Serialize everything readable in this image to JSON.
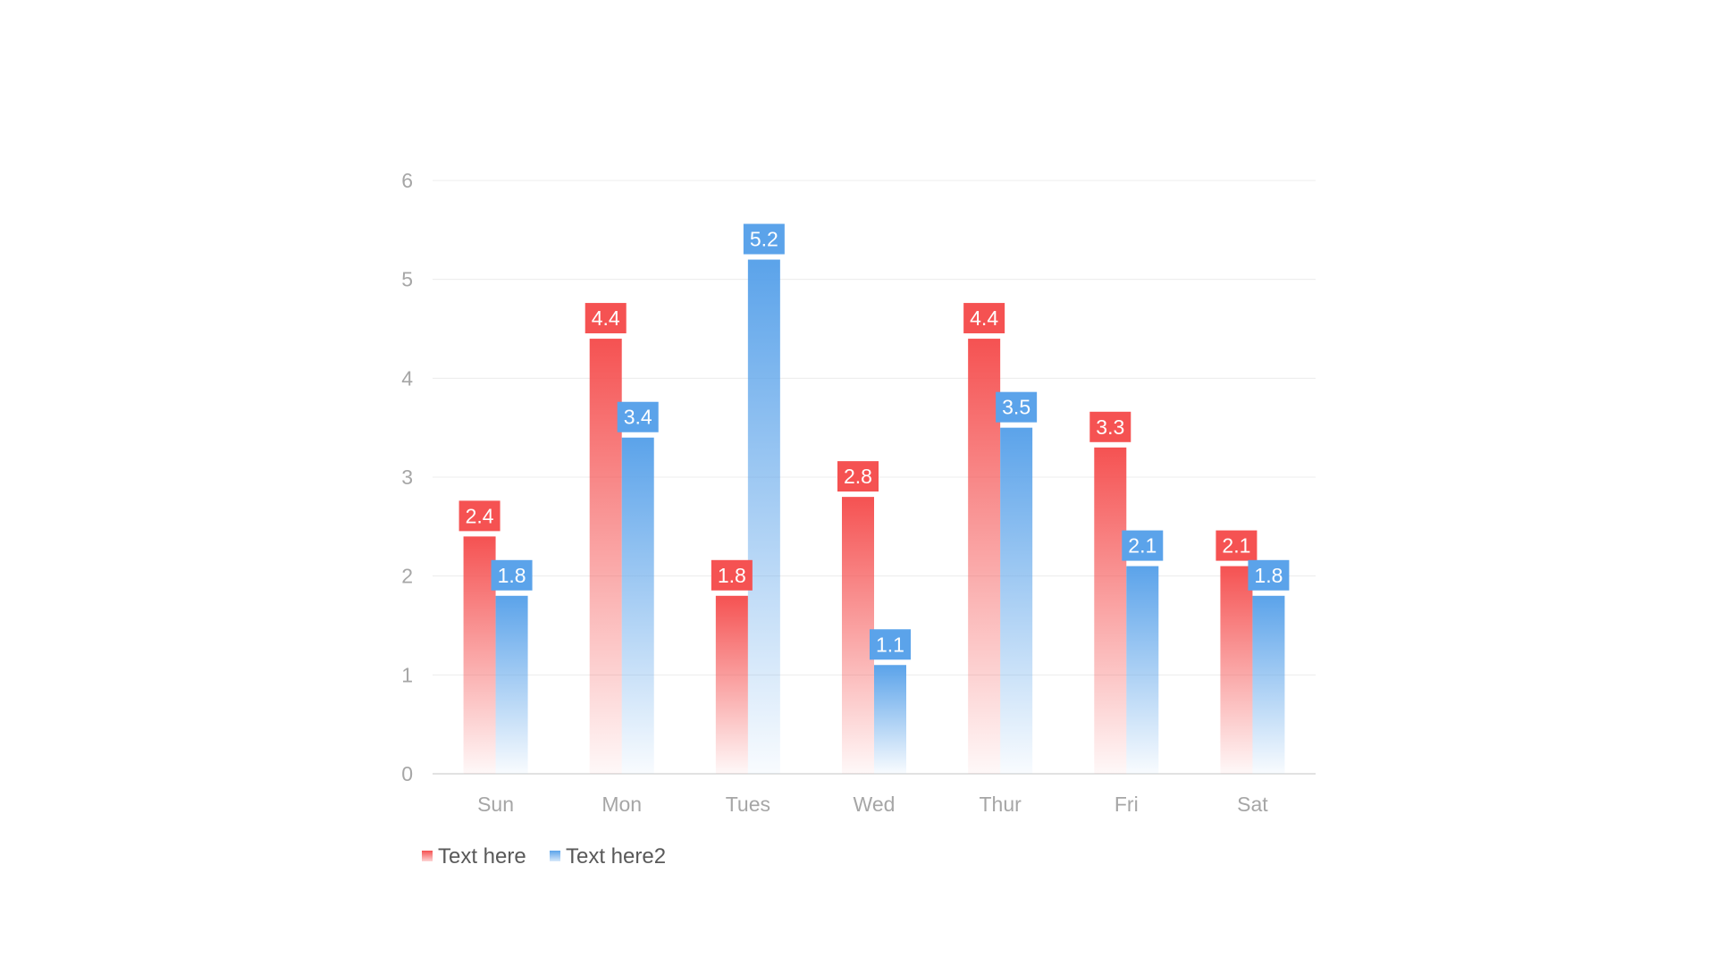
{
  "chart_data": {
    "type": "bar",
    "categories": [
      "Sun",
      "Mon",
      "Tues",
      "Wed",
      "Thur",
      "Fri",
      "Sat"
    ],
    "series": [
      {
        "name": "Text here",
        "values": [
          2.4,
          4.4,
          1.8,
          2.8,
          4.4,
          3.3,
          2.1
        ]
      },
      {
        "name": "Text here2",
        "values": [
          1.8,
          3.4,
          5.2,
          1.1,
          3.5,
          2.1,
          1.8
        ]
      }
    ],
    "y_ticks": [
      "0",
      "1",
      "2",
      "3",
      "4",
      "5",
      "6"
    ],
    "ylim": [
      0,
      6
    ],
    "grid": true,
    "legend_position": "bottom-left",
    "data_labels": true,
    "colors": {
      "series_1": "#f55252",
      "series_2": "#5ba3ea",
      "gridline": "#ececec",
      "axis_text": "#a6a6a6",
      "legend_text": "#595959"
    }
  }
}
